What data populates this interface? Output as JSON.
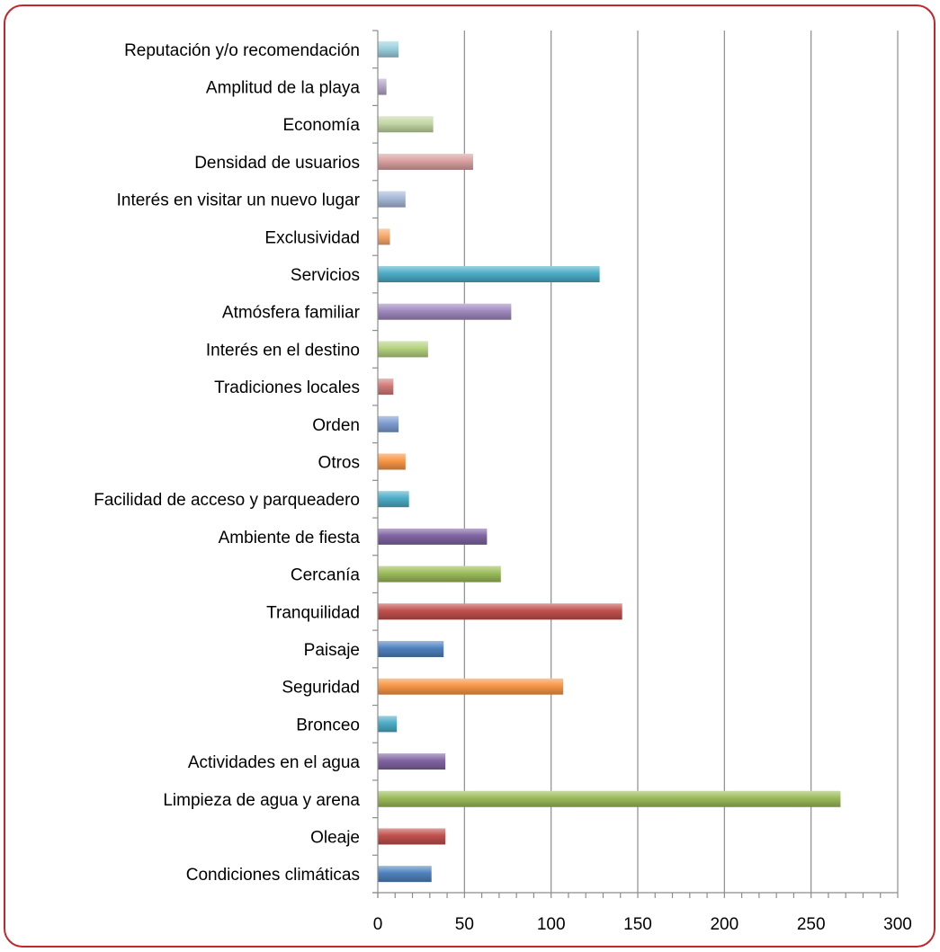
{
  "chart_data": {
    "type": "bar",
    "orientation": "horizontal",
    "title": "",
    "xlabel": "",
    "ylabel": "",
    "xlim": [
      0,
      300
    ],
    "x_ticks": [
      0,
      50,
      100,
      150,
      200,
      250,
      300
    ],
    "x_tick_labels": [
      "0",
      "50",
      "100",
      "150",
      "200",
      "250",
      "300"
    ],
    "grid": "vertical major gridlines",
    "legend": "none",
    "border_color": "#C0282E",
    "categories": [
      "Condiciones climáticas",
      "Oleaje",
      "Limpieza de agua y arena",
      "Actividades en el agua",
      "Bronceo",
      "Seguridad",
      "Paisaje",
      "Tranquilidad",
      "Cercanía",
      "Ambiente de fiesta",
      "Facilidad de acceso y parqueadero",
      "Otros",
      "Orden",
      "Tradiciones locales",
      "Interés en el destino",
      "Atmósfera familiar",
      "Servicios",
      "Exclusividad",
      "Interés en visitar un nuevo lugar",
      "Densidad de usuarios",
      "Economía",
      "Amplitud de la playa",
      "Reputación y/o recomendación"
    ],
    "values": [
      31,
      39,
      267,
      39,
      11,
      107,
      38,
      141,
      71,
      63,
      18,
      16,
      12,
      9,
      29,
      77,
      128,
      7,
      16,
      55,
      32,
      5,
      12
    ],
    "colors": [
      "#4F81BD",
      "#C0504D",
      "#9BBB59",
      "#8064A2",
      "#4BACC6",
      "#F79646",
      "#4F81BD",
      "#C0504D",
      "#9BBB59",
      "#8064A2",
      "#4BACC6",
      "#F79646",
      "#7C9CD0",
      "#D37A78",
      "#B4D17E",
      "#9F88BE",
      "#4BACC6",
      "#F9A96B",
      "#A5B8D8",
      "#D9A0A0",
      "#C3D6A4",
      "#B5A6C9",
      "#9BCFDE"
    ]
  }
}
